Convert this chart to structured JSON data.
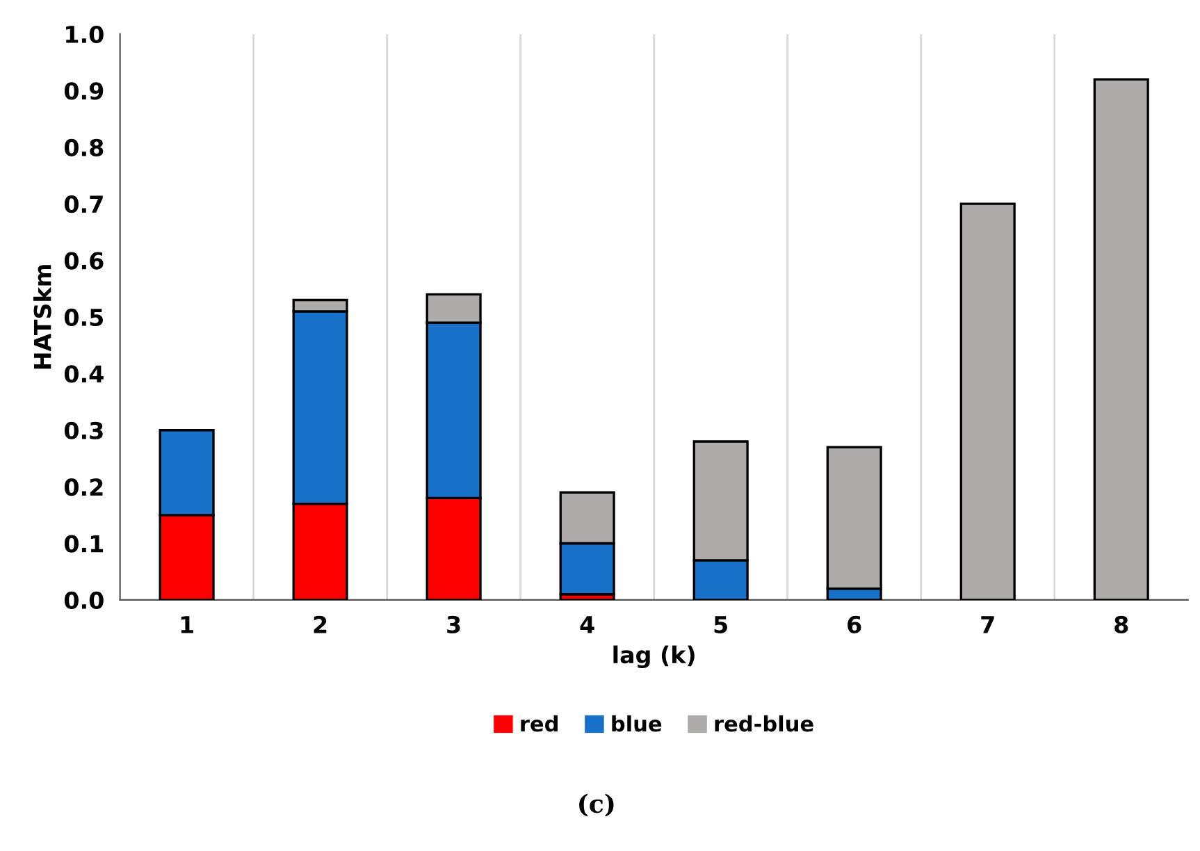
{
  "chart_data": {
    "type": "bar",
    "stacked": true,
    "xlabel": "lag (k)",
    "ylabel": "HATSkm",
    "categories": [
      "1",
      "2",
      "3",
      "4",
      "5",
      "6",
      "7",
      "8"
    ],
    "series": [
      {
        "name": "red",
        "color": "#ff0000",
        "values": [
          0.15,
          0.17,
          0.18,
          0.01,
          0,
          0,
          0,
          0
        ]
      },
      {
        "name": "blue",
        "color": "#1771c9",
        "values": [
          0.15,
          0.34,
          0.31,
          0.09,
          0.07,
          0.02,
          0,
          0
        ]
      },
      {
        "name": "red-blue",
        "color": "#afabaa",
        "values": [
          0,
          0.02,
          0.05,
          0.09,
          0.21,
          0.25,
          0.7,
          0.92
        ]
      }
    ],
    "ylim": [
      0,
      1.0
    ],
    "yticks": [
      {
        "value": 0,
        "label": "0.0"
      },
      0.1,
      0.2,
      0.3,
      0.4,
      0.5,
      0.6,
      0.7,
      0.8,
      0.9,
      {
        "value": 1.0,
        "label": "1.0"
      }
    ],
    "grid": "x",
    "legend": "bottom",
    "annotations": [
      "(c)"
    ]
  }
}
